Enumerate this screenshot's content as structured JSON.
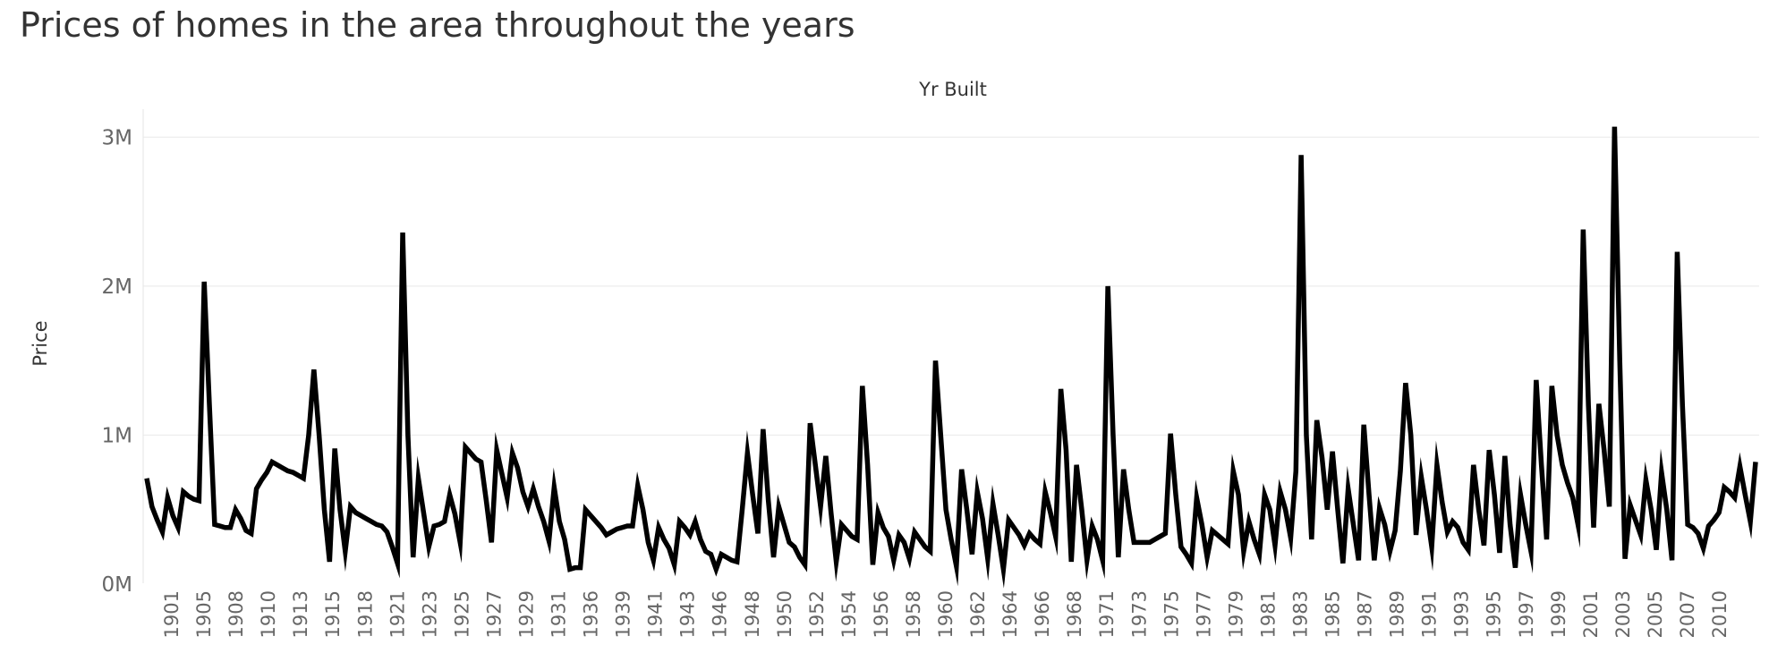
{
  "title": "Prices of homes in the area throughout the years",
  "chart_data": {
    "type": "line",
    "title": "Prices of homes in the area throughout the years",
    "xlabel": "Yr Built",
    "ylabel": "Price",
    "ylim": [
      0,
      3200000
    ],
    "y_ticks": [
      {
        "value": 0,
        "label": "0M"
      },
      {
        "value": 1000000,
        "label": "1M"
      },
      {
        "value": 2000000,
        "label": "2M"
      },
      {
        "value": 3000000,
        "label": "3M"
      }
    ],
    "x_tick_labels": [
      "1901",
      "1905",
      "1908",
      "1910",
      "1913",
      "1915",
      "1918",
      "1921",
      "1923",
      "1925",
      "1927",
      "1929",
      "1931",
      "1936",
      "1939",
      "1941",
      "1943",
      "1946",
      "1948",
      "1950",
      "1952",
      "1954",
      "1956",
      "1958",
      "1960",
      "1962",
      "1964",
      "1966",
      "1968",
      "1971",
      "1973",
      "1975",
      "1977",
      "1979",
      "1981",
      "1983",
      "1985",
      "1987",
      "1989",
      "1991",
      "1993",
      "1995",
      "1997",
      "1999",
      "2001",
      "2003",
      "2005",
      "2007",
      "2010"
    ],
    "grid": "horizontal",
    "line_color": "#000000",
    "series": [
      {
        "values": [
          710000,
          520000,
          430000,
          350000,
          580000,
          460000,
          380000,
          620000,
          590000,
          570000,
          560000,
          2030000,
          1200000,
          400000,
          390000,
          380000,
          380000,
          500000,
          440000,
          360000,
          340000,
          640000,
          700000,
          750000,
          820000,
          800000,
          780000,
          760000,
          750000,
          730000,
          710000,
          1000000,
          1440000,
          1000000,
          500000,
          150000,
          910000,
          500000,
          220000,
          520000,
          480000,
          460000,
          440000,
          420000,
          400000,
          390000,
          350000,
          250000,
          140000,
          2360000,
          1000000,
          180000,
          710000,
          480000,
          250000,
          390000,
          400000,
          420000,
          600000,
          470000,
          280000,
          920000,
          880000,
          840000,
          820000,
          560000,
          280000,
          900000,
          740000,
          580000,
          880000,
          780000,
          620000,
          520000,
          640000,
          520000,
          420000,
          290000,
          650000,
          420000,
          300000,
          100000,
          110000,
          110000,
          500000,
          460000,
          420000,
          380000,
          330000,
          350000,
          370000,
          380000,
          390000,
          390000,
          660000,
          500000,
          280000,
          160000,
          380000,
          300000,
          240000,
          130000,
          420000,
          380000,
          330000,
          420000,
          300000,
          220000,
          200000,
          100000,
          200000,
          180000,
          160000,
          150000,
          500000,
          880000,
          600000,
          340000,
          1040000,
          560000,
          180000,
          520000,
          400000,
          280000,
          250000,
          180000,
          130000,
          1080000,
          800000,
          520000,
          860000,
          480000,
          150000,
          400000,
          360000,
          320000,
          300000,
          1330000,
          800000,
          130000,
          480000,
          380000,
          320000,
          160000,
          330000,
          280000,
          170000,
          350000,
          300000,
          250000,
          220000,
          1500000,
          1000000,
          500000,
          300000,
          120000,
          770000,
          500000,
          200000,
          620000,
          440000,
          170000,
          540000,
          330000,
          100000,
          430000,
          380000,
          330000,
          260000,
          340000,
          300000,
          270000,
          620000,
          480000,
          320000,
          1310000,
          900000,
          150000,
          800000,
          500000,
          160000,
          390000,
          300000,
          160000,
          2000000,
          1000000,
          180000,
          770000,
          500000,
          280000,
          280000,
          280000,
          280000,
          300000,
          320000,
          340000,
          1010000,
          600000,
          250000,
          200000,
          140000,
          580000,
          400000,
          180000,
          360000,
          330000,
          300000,
          270000,
          760000,
          600000,
          220000,
          420000,
          300000,
          200000,
          600000,
          500000,
          260000,
          620000,
          500000,
          310000,
          760000,
          2880000,
          1000000,
          300000,
          1100000,
          850000,
          500000,
          890000,
          500000,
          140000,
          640000,
          400000,
          160000,
          1070000,
          600000,
          160000,
          510000,
          400000,
          220000,
          360000,
          760000,
          1350000,
          1000000,
          330000,
          720000,
          500000,
          250000,
          800000,
          550000,
          350000,
          420000,
          380000,
          280000,
          230000,
          800000,
          500000,
          260000,
          900000,
          600000,
          210000,
          860000,
          400000,
          110000,
          600000,
          400000,
          220000,
          1370000,
          800000,
          300000,
          1330000,
          1000000,
          800000,
          680000,
          580000,
          400000,
          2380000,
          1200000,
          380000,
          1210000,
          900000,
          520000,
          3070000,
          1500000,
          170000,
          530000,
          430000,
          330000,
          700000,
          500000,
          230000,
          750000,
          500000,
          160000,
          2230000,
          1200000,
          400000,
          380000,
          340000,
          240000,
          390000,
          430000,
          480000,
          650000,
          620000,
          580000,
          790000,
          600000,
          420000,
          820000
        ]
      }
    ]
  }
}
